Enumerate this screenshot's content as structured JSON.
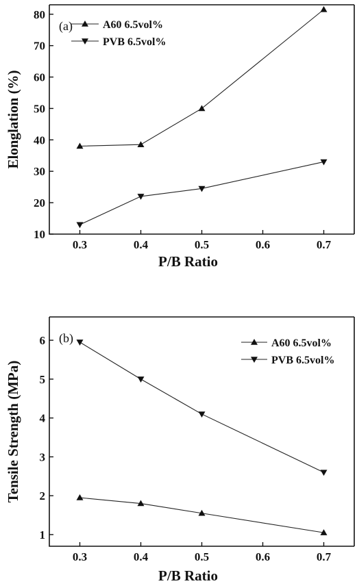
{
  "chart_data": [
    {
      "type": "line",
      "panel_label": "(a)",
      "xlabel": "P/B Ratio",
      "ylabel": "Elonglation (%)",
      "xlim": [
        0.25,
        0.75
      ],
      "ylim": [
        10,
        83
      ],
      "xticks": [
        0.3,
        0.4,
        0.5,
        0.6,
        0.7
      ],
      "xtick_labels": [
        "0.3",
        "0.4",
        "0.5",
        "0.6",
        "0.7"
      ],
      "yticks": [
        10,
        20,
        30,
        40,
        50,
        60,
        70,
        80
      ],
      "ytick_labels": [
        "10",
        "20",
        "30",
        "40",
        "50",
        "60",
        "70",
        "80"
      ],
      "legend_position": "top-left",
      "series": [
        {
          "name": "A60 6.5vol%",
          "marker": "triangle-up",
          "x": [
            0.3,
            0.4,
            0.5,
            0.7
          ],
          "values": [
            38,
            38.5,
            50,
            81.5
          ]
        },
        {
          "name": "PVB 6.5vol%",
          "marker": "triangle-down",
          "x": [
            0.3,
            0.4,
            0.5,
            0.7
          ],
          "values": [
            13,
            22,
            24.5,
            33
          ]
        }
      ]
    },
    {
      "type": "line",
      "panel_label": "(b)",
      "xlabel": "P/B Ratio",
      "ylabel": "Tensile Strength (MPa)",
      "xlim": [
        0.25,
        0.75
      ],
      "ylim": [
        0.7,
        6.6
      ],
      "xticks": [
        0.3,
        0.4,
        0.5,
        0.6,
        0.7
      ],
      "xtick_labels": [
        "0.3",
        "0.4",
        "0.5",
        "0.6",
        "0.7"
      ],
      "yticks": [
        1,
        2,
        3,
        4,
        5,
        6
      ],
      "ytick_labels": [
        "1",
        "2",
        "3",
        "4",
        "5",
        "6"
      ],
      "legend_position": "top-right",
      "series": [
        {
          "name": "A60 6.5vol%",
          "marker": "triangle-up",
          "x": [
            0.3,
            0.4,
            0.5,
            0.7
          ],
          "values": [
            1.95,
            1.8,
            1.55,
            1.05
          ]
        },
        {
          "name": "PVB 6.5vol%",
          "marker": "triangle-down",
          "x": [
            0.3,
            0.4,
            0.5,
            0.7
          ],
          "values": [
            5.95,
            5.0,
            4.1,
            2.6
          ]
        }
      ]
    }
  ]
}
